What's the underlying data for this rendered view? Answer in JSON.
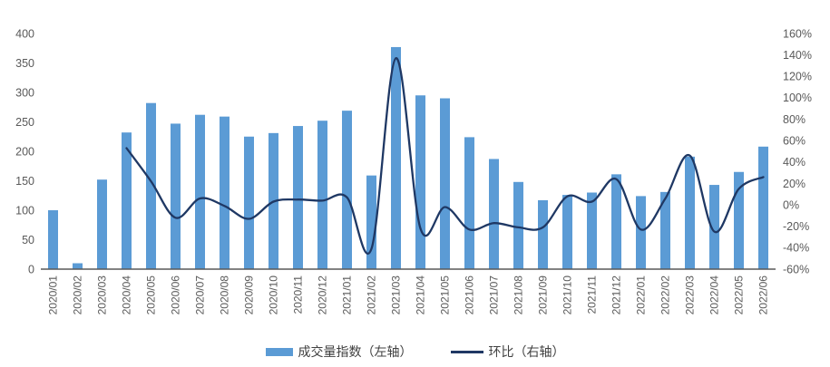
{
  "chart_data": {
    "type": "bar",
    "subtype": "bar-line-combo",
    "title": "",
    "categories": [
      "2020/01",
      "2020/02",
      "2020/03",
      "2020/04",
      "2020/05",
      "2020/06",
      "2020/07",
      "2020/08",
      "2020/09",
      "2020/10",
      "2020/11",
      "2020/12",
      "2021/01",
      "2021/02",
      "2021/03",
      "2021/04",
      "2021/05",
      "2021/06",
      "2021/07",
      "2021/08",
      "2021/09",
      "2021/10",
      "2021/11",
      "2021/12",
      "2022/01",
      "2022/02",
      "2022/03",
      "2022/04",
      "2022/05",
      "2022/06"
    ],
    "series": [
      {
        "name": "成交量指数（左轴）",
        "type": "bar",
        "axis": "left",
        "color": "#5b9bd5",
        "values": [
          100,
          10,
          152,
          232,
          282,
          247,
          262,
          259,
          225,
          231,
          243,
          252,
          269,
          159,
          377,
          295,
          290,
          224,
          187,
          148,
          117,
          126,
          130,
          161,
          124,
          131,
          191,
          143,
          165,
          208
        ]
      },
      {
        "name": "环比（右轴）",
        "type": "line",
        "axis": "right",
        "unit": "%",
        "color": "#1f3864",
        "smooth": true,
        "values": [
          null,
          null,
          null,
          53,
          22,
          -12,
          6,
          -1,
          -13,
          3,
          5,
          4,
          7,
          -41,
          137,
          -22,
          -2,
          -23,
          -17,
          -21,
          -21,
          8,
          3,
          24,
          -23,
          6,
          46,
          -25,
          15,
          26
        ]
      }
    ],
    "left_axis": {
      "min": 0,
      "max": 400,
      "step": 50,
      "suffix": ""
    },
    "right_axis": {
      "min": -60,
      "max": 160,
      "step": 20,
      "suffix": "%"
    },
    "grid": false,
    "legend_position": "bottom",
    "x_label_rotation": -90
  },
  "colors": {
    "bar": "#5b9bd5",
    "line": "#1f3864",
    "axis_text": "#595959",
    "axis_line": "#595959",
    "legend_text": "#404040",
    "background": "#ffffff"
  }
}
